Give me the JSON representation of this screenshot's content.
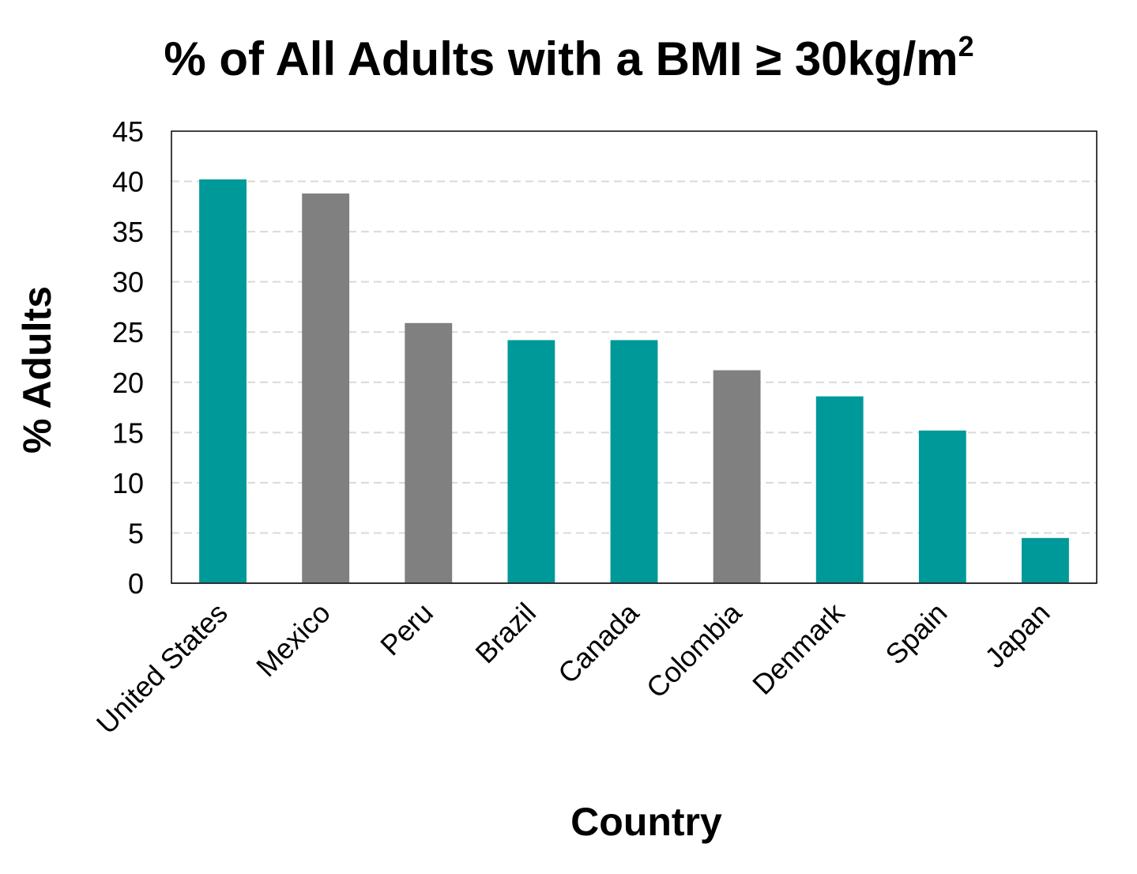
{
  "chart_data": {
    "type": "bar",
    "title": "% of All Adults with a BMI ≥ 30kg/m",
    "title_superscript": "2",
    "xlabel": "Country",
    "ylabel": "% Adults",
    "ylim": [
      0,
      45
    ],
    "yticks": [
      0,
      5,
      10,
      15,
      20,
      25,
      30,
      35,
      40,
      45
    ],
    "grid": true,
    "legend": "none",
    "categories": [
      "United States",
      "Mexico",
      "Peru",
      "Brazil",
      "Canada",
      "Colombia",
      "Denmark",
      "Spain",
      "Japan"
    ],
    "values": [
      40.2,
      38.8,
      25.9,
      24.2,
      24.2,
      21.2,
      18.6,
      15.2,
      4.5
    ],
    "bar_colors": [
      "#009999",
      "#808080",
      "#808080",
      "#009999",
      "#009999",
      "#808080",
      "#009999",
      "#009999",
      "#009999"
    ]
  }
}
